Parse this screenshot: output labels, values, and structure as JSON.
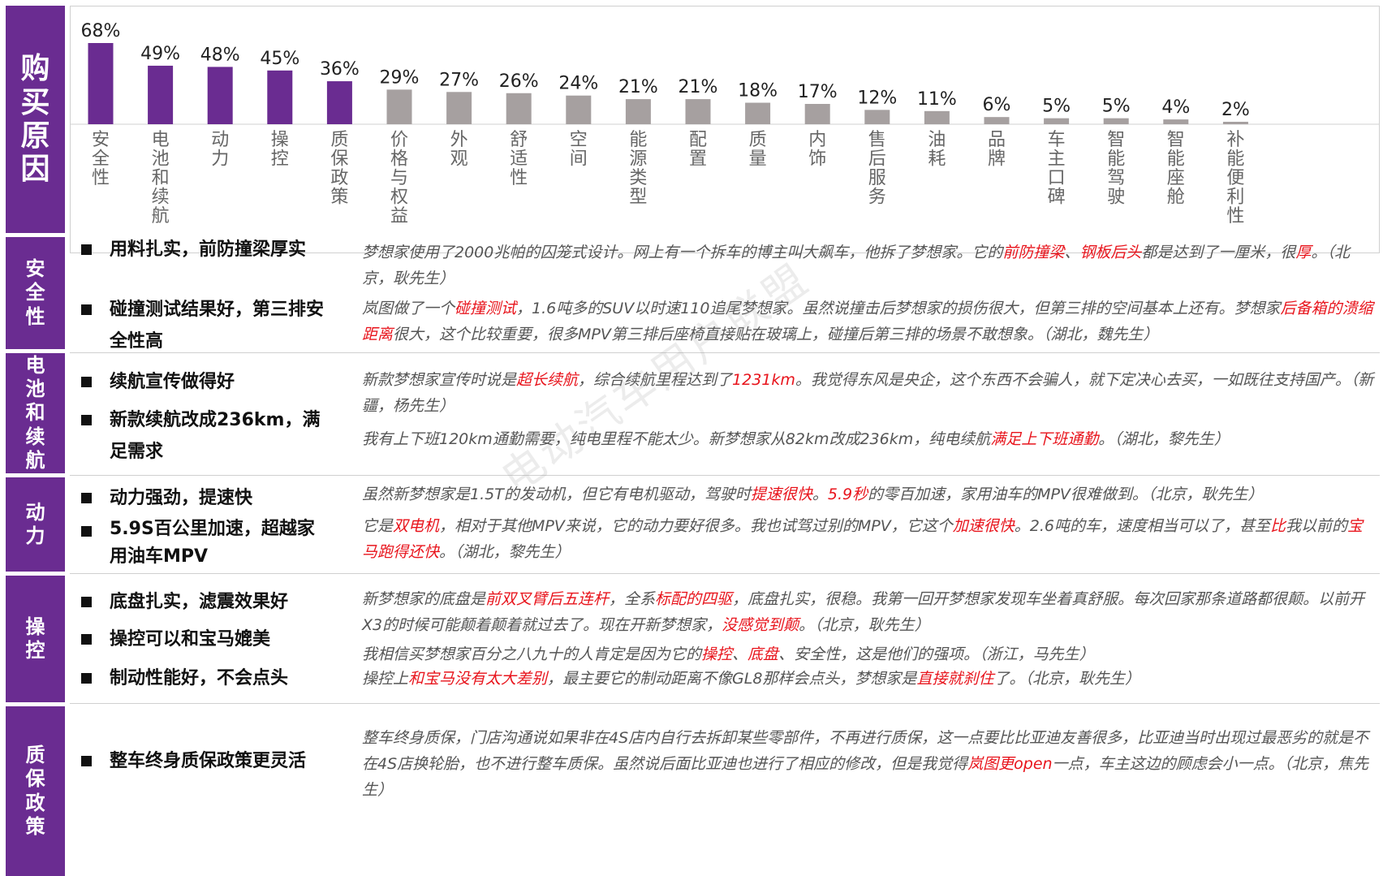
{
  "tabs": {
    "main": "购买原因",
    "safety": "安全性",
    "battery": "电池和续航",
    "power": "动力",
    "handling": "操控",
    "warranty": "质保政策"
  },
  "colors": {
    "purple": "#6a2c91",
    "gray": "#a6a0a0",
    "red": "#e8141c"
  },
  "chart_data": {
    "type": "bar",
    "categories": [
      "安全性",
      "电池和续航",
      "动力",
      "操控",
      "质保政策",
      "价格与权益",
      "外观",
      "舒适性",
      "空间",
      "能源类型",
      "配置",
      "质量",
      "内饰",
      "售后服务",
      "油耗",
      "品牌",
      "车主口碑",
      "智能驾驶",
      "智能座舱",
      "补能便利性"
    ],
    "values": [
      68,
      49,
      48,
      45,
      36,
      29,
      27,
      26,
      24,
      21,
      21,
      18,
      17,
      12,
      11,
      6,
      5,
      5,
      4,
      2
    ],
    "value_labels": [
      "68%",
      "49%",
      "48%",
      "45%",
      "36%",
      "29%",
      "27%",
      "26%",
      "24%",
      "21%",
      "21%",
      "18%",
      "17%",
      "12%",
      "11%",
      "6%",
      "5%",
      "5%",
      "4%",
      "2%"
    ],
    "highlighted_count": 5,
    "ylim": [
      0,
      70
    ],
    "grid": false
  },
  "sections": {
    "safety": {
      "bullets": [
        "用料扎实，前防撞梁厚实",
        "碰撞测试结果好，第三排安全性高"
      ],
      "quotes": [
        [
          {
            "t": "梦想家使用了2000兆帕的囚笼式设计。网上有一个拆车的博主叫大飙车，他拆了梦想家。它的"
          },
          {
            "t": "前防撞梁",
            "hl": true
          },
          {
            "t": "、"
          },
          {
            "t": "钢板后头",
            "hl": true
          },
          {
            "t": "都是达到了一厘米，很"
          },
          {
            "t": "厚",
            "hl": true
          },
          {
            "t": "。（北京，耿先生）"
          }
        ],
        [
          {
            "t": "岚图做了一个"
          },
          {
            "t": "碰撞测试",
            "hl": true
          },
          {
            "t": "，1.6吨多的SUV以时速110追尾梦想家。虽然说撞击后梦想家的损伤很大，但第三排的空间基本上还有。梦想家"
          },
          {
            "t": "后备箱的溃缩距离",
            "hl": true
          },
          {
            "t": "很大，这个比较重要，很多MPV第三排后座椅直接贴在玻璃上，碰撞后第三排的场景不敢想象。（湖北，魏先生）"
          }
        ]
      ]
    },
    "battery": {
      "bullets": [
        "续航宣传做得好",
        "新款续航改成236km，满足需求"
      ],
      "quotes": [
        [
          {
            "t": "新款梦想家宣传时说是"
          },
          {
            "t": "超长续航",
            "hl": true
          },
          {
            "t": "，综合续航里程达到了"
          },
          {
            "t": "1231km",
            "hl": true
          },
          {
            "t": "。我觉得东风是央企，这个东西不会骗人，就下定决心去买，一如既往支持国产。（新疆，杨先生）"
          }
        ],
        [
          {
            "t": "我有上下班120km通勤需要，纯电里程不能太少。新梦想家从82km改成236km，纯电续航"
          },
          {
            "t": "满足上下班通勤",
            "hl": true
          },
          {
            "t": "。（湖北，黎先生）"
          }
        ]
      ]
    },
    "power": {
      "bullets": [
        "动力强劲，提速快",
        "5.9S百公里加速，超越家用油车MPV"
      ],
      "quotes": [
        [
          {
            "t": "虽然新梦想家是1.5T的发动机，但它有电机驱动，驾驶时"
          },
          {
            "t": "提速很快",
            "hl": true
          },
          {
            "t": "。"
          },
          {
            "t": "5.9秒",
            "hl": true
          },
          {
            "t": "的零百加速，家用油车的MPV很难做到。（北京，耿先生）"
          }
        ],
        [
          {
            "t": "它是"
          },
          {
            "t": "双电机",
            "hl": true
          },
          {
            "t": "，相对于其他MPV来说，它的动力要好很多。我也试驾过别的MPV，它这个"
          },
          {
            "t": "加速很快",
            "hl": true
          },
          {
            "t": "。2.6吨的车，速度相当可以了，甚至"
          },
          {
            "t": "比",
            "hl": true
          },
          {
            "t": "我以前的"
          },
          {
            "t": "宝马跑得还快",
            "hl": true
          },
          {
            "t": "。（湖北，黎先生）"
          }
        ]
      ]
    },
    "handling": {
      "bullets": [
        "底盘扎实，滤震效果好",
        "操控可以和宝马媲美",
        "制动性能好，不会点头"
      ],
      "quotes": [
        [
          {
            "t": "新梦想家的底盘是"
          },
          {
            "t": "前双叉臂后五连杆",
            "hl": true
          },
          {
            "t": "，全系"
          },
          {
            "t": "标配的四驱",
            "hl": true
          },
          {
            "t": "，底盘扎实，很稳。我第一回开梦想家发现车坐着真舒服。每次回家那条道路都很颠。以前开X3的时候可能颠着颠着就过去了。现在开新梦想家，"
          },
          {
            "t": "没感觉到颠",
            "hl": true
          },
          {
            "t": "。（北京，耿先生）"
          }
        ],
        [
          {
            "t": "我相信买梦想家百分之八九十的人肯定是因为它的"
          },
          {
            "t": "操控",
            "hl": true
          },
          {
            "t": "、"
          },
          {
            "t": "底盘",
            "hl": true
          },
          {
            "t": "、安全性，这是他们的强项。（浙江，马先生）"
          }
        ],
        [
          {
            "t": "操控上"
          },
          {
            "t": "和宝马没有太大差别",
            "hl": true
          },
          {
            "t": "，最主要它的制动距离不像GL8那样会点头，梦想家是"
          },
          {
            "t": "直接就刹住",
            "hl": true
          },
          {
            "t": "了。（北京，耿先生）"
          }
        ]
      ]
    },
    "warranty": {
      "bullets": [
        "整车终身质保政策更灵活"
      ],
      "quotes": [
        [
          {
            "t": "整车终身质保，门店沟通说如果非在4S店内自行去拆卸某些零部件，不再进行质保，这一点要比比亚迪友善很多，比亚迪当时出现过最恶劣的就是不在4S店换轮胎，也不进行整车质保。虽然说后面比亚迪也进行了相应的修改，但是我觉得"
          },
          {
            "t": "岚图更open",
            "hl": true
          },
          {
            "t": "一点，车主这边的顾虑会小一点。（北京，焦先生）"
          }
        ]
      ]
    }
  },
  "watermark": "电动汽车用户联盟"
}
